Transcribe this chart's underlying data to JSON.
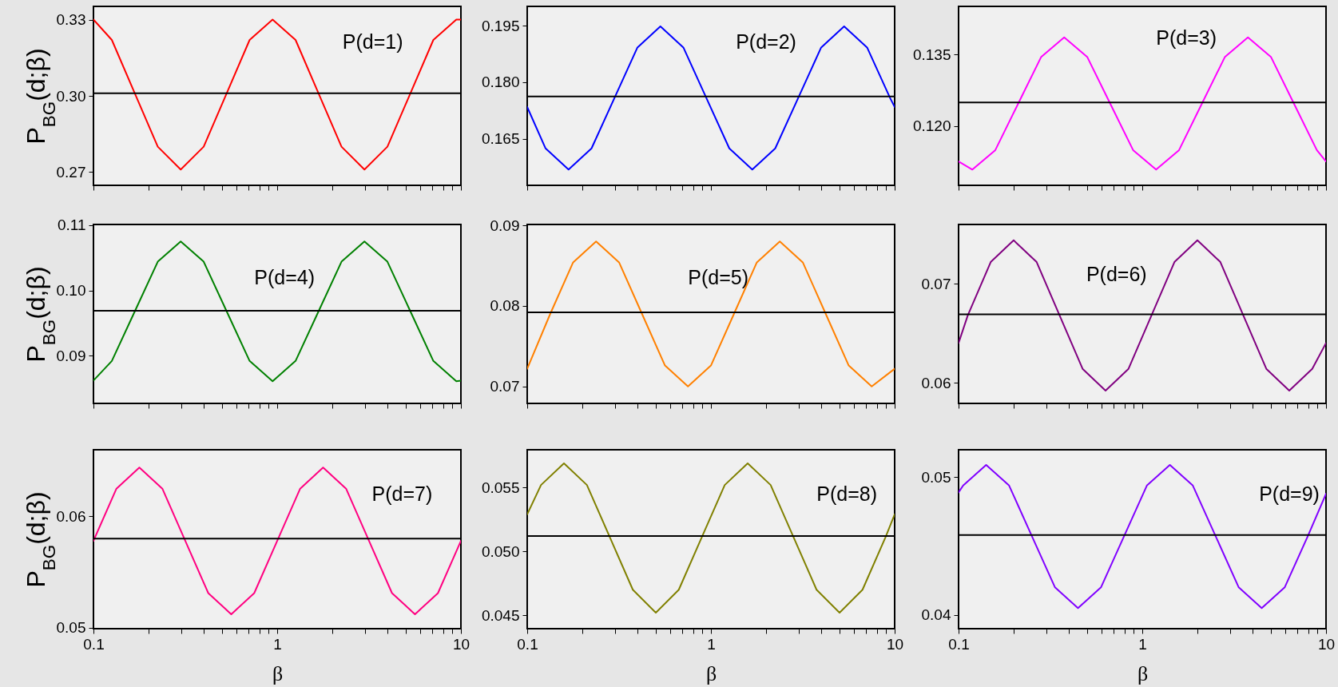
{
  "chart_data": [
    {
      "type": "line",
      "ylabel": "P$_{BG}$(d;β)",
      "annotations": [
        "P(d=1)"
      ],
      "log": "x",
      "tick_labels": "y",
      "xlim": [
        0.1,
        10
      ],
      "ylim": [
        0.2648,
        0.3352
      ],
      "xticks": [
        0.1,
        {
          "value": 0.2,
          "label": null
        },
        {
          "value": 0.3,
          "label": null
        },
        {
          "value": 0.4,
          "label": null
        },
        {
          "value": 0.5,
          "label": null
        },
        {
          "value": 0.6,
          "label": null
        },
        {
          "value": 0.7,
          "label": null
        },
        {
          "value": 0.8,
          "label": null
        },
        {
          "value": 0.9,
          "label": null
        },
        1,
        {
          "value": 2,
          "label": null
        },
        {
          "value": 3,
          "label": null
        },
        {
          "value": 4,
          "label": null
        },
        {
          "value": 5,
          "label": null
        },
        {
          "value": 6,
          "label": null
        },
        {
          "value": 7,
          "label": null
        },
        {
          "value": 8,
          "label": null
        },
        {
          "value": 9,
          "label": null
        },
        10
      ],
      "yticks": [
        0.27,
        {
          "value": 0.3,
          "label": "0.30"
        },
        0.33
      ],
      "x": [
        0.1,
        0.1259,
        0.1679,
        0.2239,
        0.2985,
        0.3981,
        0.5309,
        0.7079,
        0.9441,
        1.259,
        1.679,
        2.239,
        2.985,
        3.981,
        5.309,
        7.079,
        9.441,
        10
      ],
      "series": [
        {
          "color": "#ff0000",
          "values": [
            0.33,
            0.322,
            0.301,
            0.28,
            0.271,
            0.28,
            0.301,
            0.322,
            0.33,
            0.322,
            0.301,
            0.28,
            0.271,
            0.28,
            0.301,
            0.322,
            0.33,
            0.33
          ]
        }
      ],
      "ref_lines": [
        {
          "axis": "y",
          "value": 0.301,
          "color": "#000000"
        }
      ]
    },
    {
      "type": "line",
      "annotations": [
        "P(d=2)"
      ],
      "log": "x",
      "tick_labels": "y",
      "xlim": [
        0.1,
        10
      ],
      "ylim": [
        0.1526,
        0.2001
      ],
      "xticks": [
        0.1,
        {
          "value": 0.2,
          "label": null
        },
        {
          "value": 0.3,
          "label": null
        },
        {
          "value": 0.4,
          "label": null
        },
        {
          "value": 0.5,
          "label": null
        },
        {
          "value": 0.6,
          "label": null
        },
        {
          "value": 0.7,
          "label": null
        },
        {
          "value": 0.8,
          "label": null
        },
        {
          "value": 0.9,
          "label": null
        },
        1,
        {
          "value": 2,
          "label": null
        },
        {
          "value": 3,
          "label": null
        },
        {
          "value": 4,
          "label": null
        },
        {
          "value": 5,
          "label": null
        },
        {
          "value": 6,
          "label": null
        },
        {
          "value": 7,
          "label": null
        },
        {
          "value": 8,
          "label": null
        },
        {
          "value": 9,
          "label": null
        },
        10
      ],
      "yticks": [
        0.165,
        {
          "value": 0.18,
          "label": "0.180"
        },
        0.195
      ],
      "x": [
        0.1,
        0.1259,
        0.1679,
        0.2239,
        0.2985,
        0.3981,
        0.5309,
        0.7079,
        0.9441,
        1.259,
        1.679,
        2.239,
        2.985,
        3.981,
        5.309,
        7.079,
        9.441,
        10
      ],
      "series": [
        {
          "color": "#0000ff",
          "values": [
            0.1734,
            0.1624,
            0.1568,
            0.1624,
            0.1758,
            0.1892,
            0.1948,
            0.1892,
            0.1758,
            0.1624,
            0.1568,
            0.1624,
            0.1758,
            0.1892,
            0.1948,
            0.1892,
            0.1758,
            0.1734
          ]
        }
      ],
      "ref_lines": [
        {
          "axis": "y",
          "value": 0.1762,
          "color": "#000000"
        }
      ]
    },
    {
      "type": "line",
      "annotations": [
        "P(d=3)"
      ],
      "log": "x",
      "tick_labels": "y",
      "xlim": [
        0.1,
        10
      ],
      "ylim": [
        0.1075,
        0.1451
      ],
      "xticks": [
        0.1,
        {
          "value": 0.2,
          "label": null
        },
        {
          "value": 0.3,
          "label": null
        },
        {
          "value": 0.4,
          "label": null
        },
        {
          "value": 0.5,
          "label": null
        },
        {
          "value": 0.6,
          "label": null
        },
        {
          "value": 0.7,
          "label": null
        },
        {
          "value": 0.8,
          "label": null
        },
        {
          "value": 0.9,
          "label": null
        },
        1,
        {
          "value": 2,
          "label": null
        },
        {
          "value": 3,
          "label": null
        },
        {
          "value": 4,
          "label": null
        },
        {
          "value": 5,
          "label": null
        },
        {
          "value": 6,
          "label": null
        },
        {
          "value": 7,
          "label": null
        },
        {
          "value": 8,
          "label": null
        },
        {
          "value": 9,
          "label": null
        },
        10
      ],
      "yticks": [
        {
          "value": 0.12,
          "label": "0.120"
        },
        0.135
      ],
      "x": [
        0.1,
        0.1189,
        0.1585,
        0.2113,
        0.2818,
        0.3758,
        0.5012,
        0.6683,
        0.8913,
        1.189,
        1.585,
        2.113,
        2.818,
        3.758,
        5.012,
        6.683,
        8.913,
        10
      ],
      "series": [
        {
          "color": "#ff00ff",
          "values": [
            0.1125,
            0.1108,
            0.1149,
            0.1247,
            0.1345,
            0.1386,
            0.1345,
            0.1247,
            0.1149,
            0.1108,
            0.1149,
            0.1247,
            0.1345,
            0.1386,
            0.1345,
            0.1247,
            0.1149,
            0.1125
          ]
        }
      ],
      "ref_lines": [
        {
          "axis": "y",
          "value": 0.1249,
          "color": "#000000"
        }
      ]
    },
    {
      "type": "line",
      "ylabel": "P$_{BG}$(d;β)",
      "annotations": [
        "P(d=4)"
      ],
      "log": "x",
      "tick_labels": "y",
      "xlim": [
        0.1,
        10
      ],
      "ylim": [
        0.0827,
        0.1101
      ],
      "xticks": [
        0.1,
        {
          "value": 0.2,
          "label": null
        },
        {
          "value": 0.3,
          "label": null
        },
        {
          "value": 0.4,
          "label": null
        },
        {
          "value": 0.5,
          "label": null
        },
        {
          "value": 0.6,
          "label": null
        },
        {
          "value": 0.7,
          "label": null
        },
        {
          "value": 0.8,
          "label": null
        },
        {
          "value": 0.9,
          "label": null
        },
        1,
        {
          "value": 2,
          "label": null
        },
        {
          "value": 3,
          "label": null
        },
        {
          "value": 4,
          "label": null
        },
        {
          "value": 5,
          "label": null
        },
        {
          "value": 6,
          "label": null
        },
        {
          "value": 7,
          "label": null
        },
        {
          "value": 8,
          "label": null
        },
        {
          "value": 9,
          "label": null
        },
        10
      ],
      "yticks": [
        0.09,
        {
          "value": 0.1,
          "label": "0.10"
        },
        0.11
      ],
      "x": [
        0.1,
        0.1259,
        0.1679,
        0.2239,
        0.2985,
        0.3981,
        0.5309,
        0.7079,
        0.9441,
        1.259,
        1.679,
        2.239,
        2.985,
        3.981,
        5.309,
        7.079,
        9.441,
        10
      ],
      "series": [
        {
          "color": "#008000",
          "values": [
            0.0862,
            0.0892,
            0.0968,
            0.1044,
            0.1075,
            0.1044,
            0.0968,
            0.0892,
            0.0861,
            0.0892,
            0.0968,
            0.1044,
            0.1075,
            0.1044,
            0.0968,
            0.0892,
            0.0861,
            0.0862
          ]
        }
      ],
      "ref_lines": [
        {
          "axis": "y",
          "value": 0.0969,
          "color": "#000000"
        }
      ]
    },
    {
      "type": "line",
      "annotations": [
        "P(d=5)"
      ],
      "log": "x",
      "tick_labels": "y",
      "xlim": [
        0.1,
        10
      ],
      "ylim": [
        0.0679,
        0.0901
      ],
      "xticks": [
        0.1,
        {
          "value": 0.2,
          "label": null
        },
        {
          "value": 0.3,
          "label": null
        },
        {
          "value": 0.4,
          "label": null
        },
        {
          "value": 0.5,
          "label": null
        },
        {
          "value": 0.6,
          "label": null
        },
        {
          "value": 0.7,
          "label": null
        },
        {
          "value": 0.8,
          "label": null
        },
        {
          "value": 0.9,
          "label": null
        },
        1,
        {
          "value": 2,
          "label": null
        },
        {
          "value": 3,
          "label": null
        },
        {
          "value": 4,
          "label": null
        },
        {
          "value": 5,
          "label": null
        },
        {
          "value": 6,
          "label": null
        },
        {
          "value": 7,
          "label": null
        },
        {
          "value": 8,
          "label": null
        },
        {
          "value": 9,
          "label": null
        },
        10
      ],
      "yticks": [
        0.07,
        0.08,
        0.09
      ],
      "x": [
        0.1,
        0.1334,
        0.1778,
        0.2371,
        0.3162,
        0.4217,
        0.5623,
        0.7499,
        1,
        1.334,
        1.778,
        2.371,
        3.162,
        4.217,
        5.623,
        7.499,
        10
      ],
      "series": [
        {
          "color": "#ff8000",
          "values": [
            0.0722,
            0.079,
            0.0854,
            0.088,
            0.0854,
            0.079,
            0.0726,
            0.07,
            0.0726,
            0.079,
            0.0854,
            0.088,
            0.0854,
            0.079,
            0.0726,
            0.07,
            0.0722
          ]
        }
      ],
      "ref_lines": [
        {
          "axis": "y",
          "value": 0.0792,
          "color": "#000000"
        }
      ]
    },
    {
      "type": "line",
      "annotations": [
        "P(d=6)"
      ],
      "log": "x",
      "tick_labels": "y",
      "xlim": [
        0.1,
        10
      ],
      "ylim": [
        0.0579,
        0.076
      ],
      "xticks": [
        0.1,
        {
          "value": 0.2,
          "label": null
        },
        {
          "value": 0.3,
          "label": null
        },
        {
          "value": 0.4,
          "label": null
        },
        {
          "value": 0.5,
          "label": null
        },
        {
          "value": 0.6,
          "label": null
        },
        {
          "value": 0.7,
          "label": null
        },
        {
          "value": 0.8,
          "label": null
        },
        {
          "value": 0.9,
          "label": null
        },
        1,
        {
          "value": 2,
          "label": null
        },
        {
          "value": 3,
          "label": null
        },
        {
          "value": 4,
          "label": null
        },
        {
          "value": 5,
          "label": null
        },
        {
          "value": 6,
          "label": null
        },
        {
          "value": 7,
          "label": null
        },
        {
          "value": 8,
          "label": null
        },
        {
          "value": 9,
          "label": null
        },
        10
      ],
      "yticks": [
        0.06,
        0.07
      ],
      "x": [
        0.1,
        0.1122,
        0.1496,
        0.1995,
        0.2661,
        0.3548,
        0.4732,
        0.631,
        0.8414,
        1.122,
        1.496,
        1.995,
        2.661,
        3.548,
        4.732,
        6.31,
        8.414,
        10
      ],
      "series": [
        {
          "color": "#800080",
          "values": [
            0.064,
            0.0668,
            0.0722,
            0.0744,
            0.0722,
            0.0668,
            0.0614,
            0.0592,
            0.0614,
            0.0668,
            0.0722,
            0.0744,
            0.0722,
            0.0668,
            0.0614,
            0.0592,
            0.0614,
            0.064
          ]
        }
      ],
      "ref_lines": [
        {
          "axis": "y",
          "value": 0.0669,
          "color": "#000000"
        }
      ]
    },
    {
      "type": "line",
      "ylabel": "P$_{BG}$(d;β)",
      "xlabel": "β",
      "annotations": [
        "P(d=7)"
      ],
      "log": "x",
      "xlim": [
        0.1,
        10
      ],
      "ylim": [
        0.0499,
        0.066
      ],
      "xticks": [
        0.1,
        {
          "value": 0.2,
          "label": null
        },
        {
          "value": 0.3,
          "label": null
        },
        {
          "value": 0.4,
          "label": null
        },
        {
          "value": 0.5,
          "label": null
        },
        {
          "value": 0.6,
          "label": null
        },
        {
          "value": 0.7,
          "label": null
        },
        {
          "value": 0.8,
          "label": null
        },
        {
          "value": 0.9,
          "label": null
        },
        1,
        {
          "value": 2,
          "label": null
        },
        {
          "value": 3,
          "label": null
        },
        {
          "value": 4,
          "label": null
        },
        {
          "value": 5,
          "label": null
        },
        {
          "value": 6,
          "label": null
        },
        {
          "value": 7,
          "label": null
        },
        {
          "value": 8,
          "label": null
        },
        {
          "value": 9,
          "label": null
        },
        10
      ],
      "yticks": [
        0.05,
        0.06
      ],
      "x": [
        0.1,
        0.1334,
        0.1778,
        0.2371,
        0.3162,
        0.4217,
        0.5623,
        0.7499,
        1,
        1.334,
        1.778,
        2.371,
        3.162,
        4.217,
        5.623,
        7.499,
        10
      ],
      "series": [
        {
          "color": "#ff0080",
          "values": [
            0.0578,
            0.0625,
            0.0644,
            0.0625,
            0.0578,
            0.0531,
            0.0512,
            0.0531,
            0.0578,
            0.0625,
            0.0644,
            0.0625,
            0.0578,
            0.0531,
            0.0512,
            0.0531,
            0.0578
          ]
        }
      ],
      "ref_lines": [
        {
          "axis": "y",
          "value": 0.058,
          "color": "#000000"
        }
      ]
    },
    {
      "type": "line",
      "xlabel": "β",
      "annotations": [
        "P(d=8)"
      ],
      "log": "x",
      "xlim": [
        0.1,
        10
      ],
      "ylim": [
        0.04395,
        0.05796
      ],
      "xticks": [
        0.1,
        {
          "value": 0.2,
          "label": null
        },
        {
          "value": 0.3,
          "label": null
        },
        {
          "value": 0.4,
          "label": null
        },
        {
          "value": 0.5,
          "label": null
        },
        {
          "value": 0.6,
          "label": null
        },
        {
          "value": 0.7,
          "label": null
        },
        {
          "value": 0.8,
          "label": null
        },
        {
          "value": 0.9,
          "label": null
        },
        1,
        {
          "value": 2,
          "label": null
        },
        {
          "value": 3,
          "label": null
        },
        {
          "value": 4,
          "label": null
        },
        {
          "value": 5,
          "label": null
        },
        {
          "value": 6,
          "label": null
        },
        {
          "value": 7,
          "label": null
        },
        {
          "value": 8,
          "label": null
        },
        {
          "value": 9,
          "label": null
        },
        10
      ],
      "yticks": [
        0.045,
        {
          "value": 0.05,
          "label": "0.050"
        },
        0.055
      ],
      "x": [
        0.1,
        0.1189,
        0.1585,
        0.2113,
        0.2818,
        0.3758,
        0.5012,
        0.6683,
        0.8913,
        1.189,
        1.585,
        2.113,
        2.818,
        3.758,
        5.012,
        6.683,
        8.913,
        10
      ],
      "series": [
        {
          "color": "#808000",
          "values": [
            0.0529,
            0.0552,
            0.0569,
            0.0552,
            0.0511,
            0.047,
            0.0452,
            0.047,
            0.0511,
            0.0552,
            0.0569,
            0.0552,
            0.0511,
            0.047,
            0.0452,
            0.047,
            0.0511,
            0.0529
          ]
        }
      ],
      "ref_lines": [
        {
          "axis": "y",
          "value": 0.0512,
          "color": "#000000"
        }
      ]
    },
    {
      "type": "line",
      "xlabel": "β",
      "annotations": [
        "P(d=9)"
      ],
      "log": "x",
      "xlim": [
        0.1,
        10
      ],
      "ylim": [
        0.039,
        0.052
      ],
      "xticks": [
        0.1,
        {
          "value": 0.2,
          "label": null
        },
        {
          "value": 0.3,
          "label": null
        },
        {
          "value": 0.4,
          "label": null
        },
        {
          "value": 0.5,
          "label": null
        },
        {
          "value": 0.6,
          "label": null
        },
        {
          "value": 0.7,
          "label": null
        },
        {
          "value": 0.8,
          "label": null
        },
        {
          "value": 0.9,
          "label": null
        },
        1,
        {
          "value": 2,
          "label": null
        },
        {
          "value": 3,
          "label": null
        },
        {
          "value": 4,
          "label": null
        },
        {
          "value": 5,
          "label": null
        },
        {
          "value": 6,
          "label": null
        },
        {
          "value": 7,
          "label": null
        },
        {
          "value": 8,
          "label": null
        },
        {
          "value": 9,
          "label": null
        },
        10
      ],
      "yticks": [
        0.04,
        0.05
      ],
      "x": [
        0.1,
        0.1059,
        0.1413,
        0.1884,
        0.2512,
        0.335,
        0.4467,
        0.5957,
        0.7943,
        1.059,
        1.413,
        1.884,
        2.512,
        3.35,
        4.467,
        5.957,
        7.943,
        10
      ],
      "series": [
        {
          "color": "#8000ff",
          "values": [
            0.0489,
            0.0494,
            0.0509,
            0.0494,
            0.0457,
            0.042,
            0.0405,
            0.042,
            0.0457,
            0.0494,
            0.0509,
            0.0494,
            0.0457,
            0.042,
            0.0405,
            0.042,
            0.0457,
            0.0488
          ]
        }
      ],
      "ref_lines": [
        {
          "axis": "y",
          "value": 0.0458,
          "color": "#000000"
        }
      ]
    }
  ]
}
